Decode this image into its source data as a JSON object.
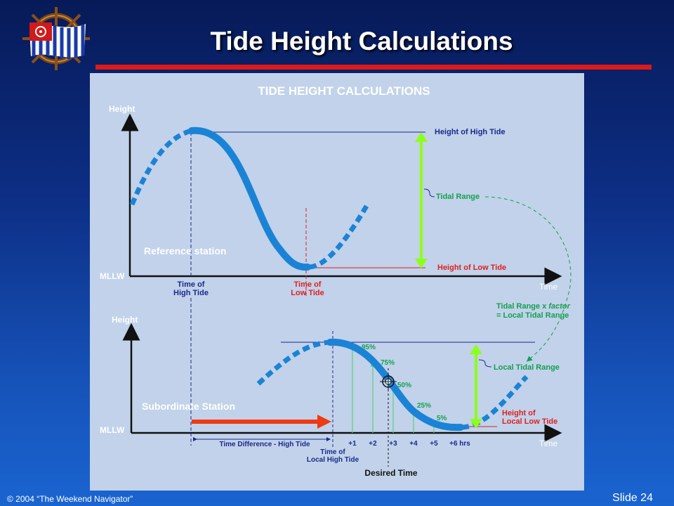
{
  "slide": {
    "title": "Tide Height Calculations",
    "footer_copyright": "© 2004 “The Weekend Navigator”",
    "slide_number": "Slide 24"
  },
  "diagram": {
    "heading": "TIDE HEIGHT CALCULATIONS",
    "top": {
      "y_axis_label": "Height",
      "baseline_label": "MLLW",
      "x_axis_label": "Time",
      "station_label": "Reference station",
      "high_tide_time": [
        "Time of",
        "High Tide"
      ],
      "low_tide_time": [
        "Time of",
        "Low Tide"
      ],
      "high_tide_height": "Height of High Tide",
      "low_tide_height": "Height of Low Tide",
      "tidal_range": "Tidal Range"
    },
    "factor_note": {
      "line1_pre": "Tidal Range x ",
      "line1_italic": "factor",
      "line2": "= Local Tidal Range"
    },
    "bottom": {
      "y_axis_label": "Height",
      "baseline_label": "MLLW",
      "x_axis_label": "Time",
      "station_label": "Subordinate Station",
      "time_difference": "Time Difference - High Tide",
      "local_high_time": [
        "Time of",
        "Local High Tide"
      ],
      "desired_time": "Desired Time",
      "local_tidal_range": "Local Tidal Range",
      "local_low_tide": [
        "Height of",
        "Local Low Tide"
      ],
      "percentages": [
        "95%",
        "75%",
        "50%",
        "25%",
        "5%"
      ],
      "hour_ticks": [
        "+1",
        "+2",
        "+3",
        "+4",
        "+5",
        "+6 hrs"
      ]
    },
    "colors": {
      "curve": "#1b83d6",
      "range_arrow": "#8dff1a",
      "red_lines": "#e02020",
      "label_green": "#14a050",
      "label_blue": "#1a2a8a",
      "time_arrow": "#f03a12"
    }
  }
}
